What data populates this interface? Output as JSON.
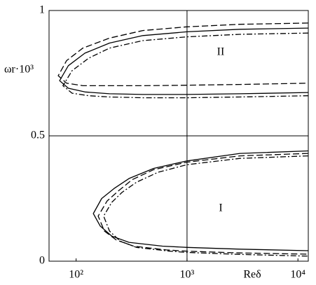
{
  "chart_data": {
    "type": "line",
    "xlabel": "Reδ",
    "ylabel": "ωr·10³",
    "xscale": "log",
    "xlim": [
      57,
      12400
    ],
    "ylim": [
      0,
      1
    ],
    "xticks": [
      {
        "value": 100,
        "label": "10²"
      },
      {
        "value": 1000,
        "label": "10³"
      },
      {
        "value": 10000,
        "label": "10⁴"
      }
    ],
    "yticks": [
      0,
      0.5,
      1
    ],
    "x_lines": [
      1000
    ],
    "y_lines": [
      0.5
    ],
    "annotations": [
      "II",
      "I"
    ],
    "series": [
      {
        "color": "#000000",
        "dash": "solid",
        "x": [
          12400,
          3000,
          1000,
          400,
          200,
          120,
          85,
          71,
          85,
          120,
          200,
          400,
          1000,
          3000,
          12400
        ],
        "values": [
          0.93,
          0.925,
          0.915,
          0.9,
          0.87,
          0.83,
          0.78,
          0.72,
          0.69,
          0.675,
          0.668,
          0.665,
          0.665,
          0.668,
          0.673
        ]
      },
      {
        "color": "#000000",
        "dash": "dashed",
        "x": [
          12400,
          3000,
          1000,
          400,
          200,
          115,
          82,
          69,
          82,
          115,
          200,
          400,
          1000,
          3000,
          12400
        ],
        "values": [
          0.95,
          0.945,
          0.935,
          0.92,
          0.89,
          0.85,
          0.8,
          0.74,
          0.71,
          0.7,
          0.7,
          0.7,
          0.702,
          0.705,
          0.71
        ]
      },
      {
        "color": "#000000",
        "dash": "dashdot",
        "x": [
          12400,
          3000,
          1000,
          400,
          200,
          130,
          92,
          76,
          92,
          130,
          200,
          400,
          1000,
          3000,
          12400
        ],
        "values": [
          0.91,
          0.905,
          0.895,
          0.88,
          0.85,
          0.81,
          0.76,
          0.7,
          0.67,
          0.66,
          0.655,
          0.652,
          0.652,
          0.655,
          0.66
        ]
      },
      {
        "color": "#000000",
        "dash": "solid",
        "x": [
          12400,
          3000,
          1000,
          500,
          300,
          220,
          170,
          143,
          165,
          210,
          300,
          600,
          1000,
          3000,
          12400
        ],
        "values": [
          0.44,
          0.43,
          0.4,
          0.37,
          0.33,
          0.29,
          0.25,
          0.19,
          0.14,
          0.1,
          0.075,
          0.06,
          0.055,
          0.048,
          0.042
        ]
      },
      {
        "color": "#000000",
        "dash": "dashed",
        "x": [
          12400,
          3000,
          1000,
          500,
          320,
          240,
          190,
          158,
          180,
          230,
          330,
          650,
          1000,
          3000,
          12400
        ],
        "values": [
          0.43,
          0.42,
          0.395,
          0.365,
          0.325,
          0.28,
          0.24,
          0.18,
          0.12,
          0.085,
          0.06,
          0.045,
          0.04,
          0.033,
          0.028
        ]
      },
      {
        "color": "#000000",
        "dash": "dashdot",
        "x": [
          12400,
          3000,
          1000,
          550,
          350,
          260,
          210,
          177,
          200,
          250,
          350,
          700,
          1000,
          3000,
          12400
        ],
        "values": [
          0.42,
          0.41,
          0.385,
          0.355,
          0.315,
          0.275,
          0.235,
          0.18,
          0.12,
          0.08,
          0.055,
          0.04,
          0.035,
          0.027,
          0.02
        ]
      }
    ]
  }
}
